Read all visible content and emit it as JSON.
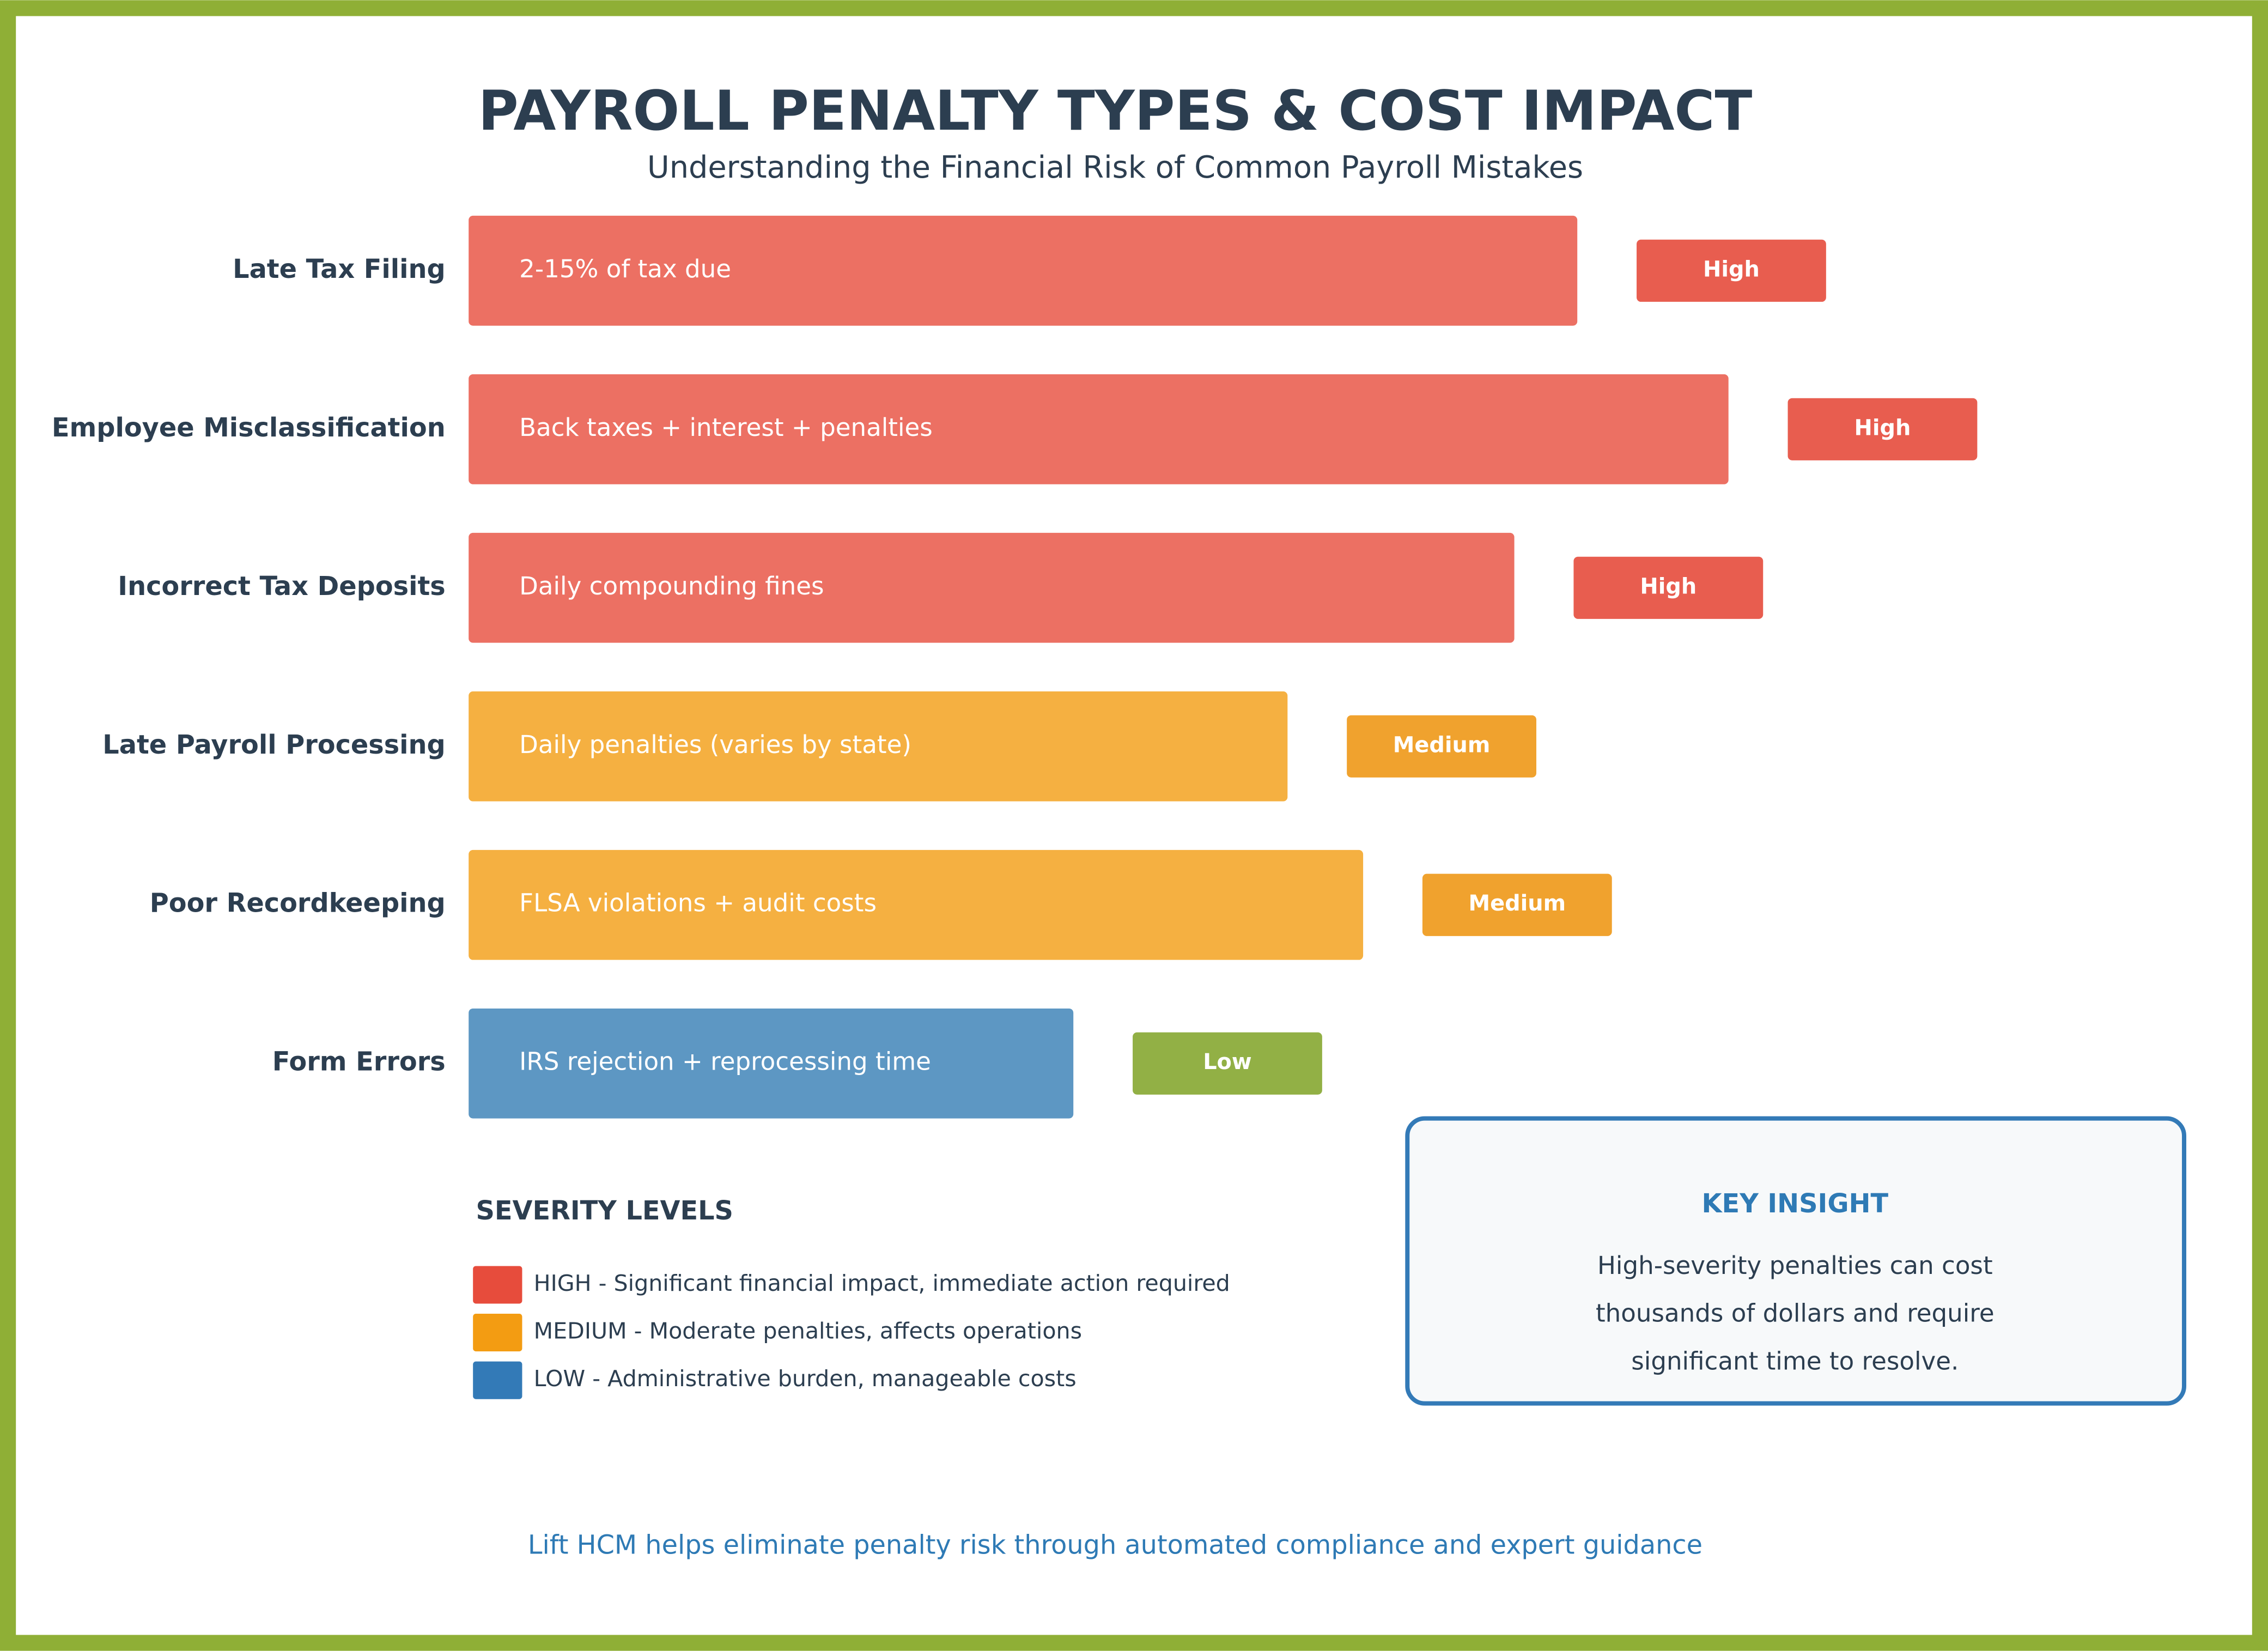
{
  "chart_data": {
    "type": "bar",
    "orientation": "horizontal",
    "title": "PAYROLL PENALTY TYPES & COST IMPACT",
    "subtitle": "Understanding the Financial Risk of Common Payroll Mistakes",
    "categories": [
      "Late Tax Filing",
      "Employee Misclassification",
      "Incorrect Tax Deposits",
      "Late Payroll Processing",
      "Poor Recordkeeping",
      "Form Errors"
    ],
    "values": [
      88,
      100,
      83,
      65,
      71,
      48
    ],
    "descriptions": [
      "2-15% of tax due",
      "Back taxes + interest + penalties",
      "Daily compounding fines",
      "Daily penalties (varies by state)",
      "FLSA violations + audit costs",
      "IRS rejection + reprocessing time"
    ],
    "severities": [
      "High",
      "High",
      "High",
      "Medium",
      "Medium",
      "Low"
    ],
    "bar_colors": [
      "#EC7063",
      "#EC7063",
      "#EC7063",
      "#F5B041",
      "#F5B041",
      "#5D97C3"
    ],
    "badge_colors": [
      "#E85D4F",
      "#E85D4F",
      "#E85D4F",
      "#F0A22E",
      "#F0A22E",
      "#92B045"
    ],
    "legend": {
      "title": "SEVERITY LEVELS",
      "items": [
        {
          "label": "HIGH - Significant financial impact, immediate action required",
          "color": "#E74C3C"
        },
        {
          "label": "MEDIUM - Moderate penalties, affects operations",
          "color": "#F39C12"
        },
        {
          "label": "LOW - Administrative burden, manageable costs",
          "color": "#337AB7"
        }
      ]
    },
    "key_insight": {
      "title": "KEY INSIGHT",
      "lines": [
        "High-severity penalties can cost",
        "thousands of dollars and require",
        "significant time to resolve."
      ]
    },
    "footer": "Lift HCM helps eliminate penalty risk through automated compliance and expert guidance"
  }
}
